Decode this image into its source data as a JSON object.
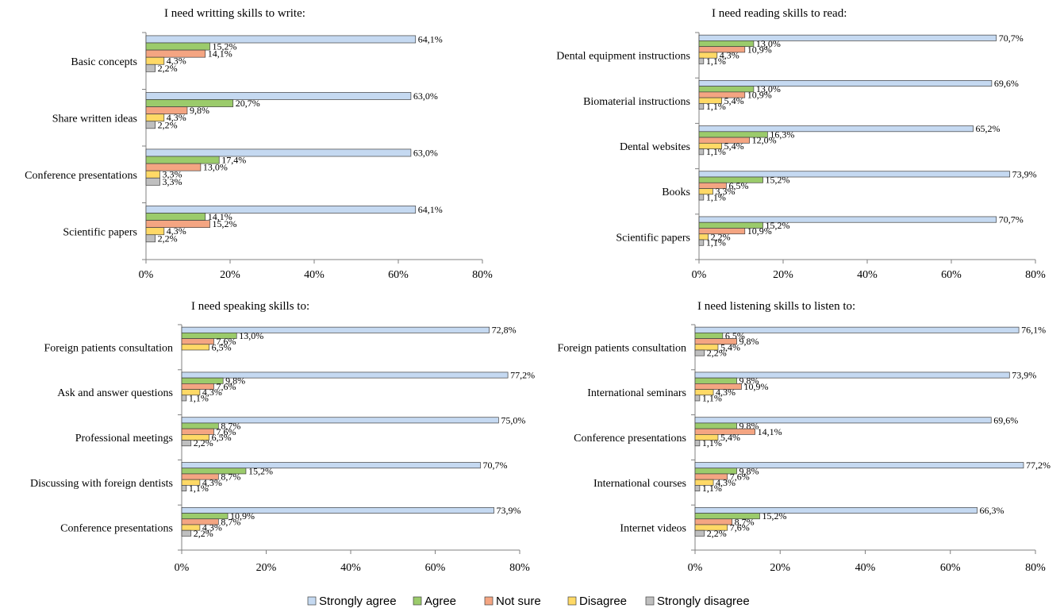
{
  "legend": [
    {
      "name": "Strongly agree",
      "color": "#C5D9F1"
    },
    {
      "name": "Agree",
      "color": "#9BCB6B"
    },
    {
      "name": "Not sure",
      "color": "#F4A582"
    },
    {
      "name": "Disagree",
      "color": "#FFD966"
    },
    {
      "name": "Strongly disagree",
      "color": "#BFBFBF"
    }
  ],
  "chart_data": [
    {
      "type": "bar",
      "orientation": "horizontal",
      "title": "I need writting skills to write:",
      "categories": [
        "Basic concepts",
        "Share written ideas",
        "Conference presentations",
        "Scientific papers"
      ],
      "series": [
        {
          "name": "Strongly agree",
          "values": [
            64.1,
            63.0,
            63.0,
            64.1
          ],
          "labels": [
            "64,1%",
            "63,0%",
            "63,0%",
            "64,1%"
          ]
        },
        {
          "name": "Agree",
          "values": [
            15.2,
            20.7,
            17.4,
            14.1
          ],
          "labels": [
            "15,2%",
            "20,7%",
            "17,4%",
            "14,1%"
          ]
        },
        {
          "name": "Not sure",
          "values": [
            14.1,
            9.8,
            13.0,
            15.2
          ],
          "labels": [
            "14,1%",
            "9,8%",
            "13,0%",
            "15,2%"
          ]
        },
        {
          "name": "Disagree",
          "values": [
            4.3,
            4.3,
            3.3,
            4.3
          ],
          "labels": [
            "4,3%",
            "4,3%",
            "3,3%",
            "4,3%"
          ]
        },
        {
          "name": "Strongly disagree",
          "values": [
            2.2,
            2.2,
            3.3,
            2.2
          ],
          "labels": [
            "2,2%",
            "2,2%",
            "3,3%",
            "2,2%"
          ]
        }
      ],
      "xlim": [
        0,
        80
      ],
      "ticks": [
        "0%",
        "20%",
        "40%",
        "60%",
        "80%"
      ]
    },
    {
      "type": "bar",
      "orientation": "horizontal",
      "title": "I need reading skills to read:",
      "categories": [
        "Dental equipment instructions",
        "Biomaterial instructions",
        "Dental websites",
        "Books",
        "Scientific papers"
      ],
      "series": [
        {
          "name": "Strongly agree",
          "values": [
            70.7,
            69.6,
            65.2,
            73.9,
            70.7
          ],
          "labels": [
            "70,7%",
            "69,6%",
            "65,2%",
            "73,9%",
            "70,7%"
          ]
        },
        {
          "name": "Agree",
          "values": [
            13.0,
            13.0,
            16.3,
            15.2,
            15.2
          ],
          "labels": [
            "13,0%",
            "13,0%",
            "16,3%",
            "15,2%",
            "15,2%"
          ]
        },
        {
          "name": "Not sure",
          "values": [
            10.9,
            10.9,
            12.0,
            6.5,
            10.9
          ],
          "labels": [
            "10,9%",
            "10,9%",
            "12,0%",
            "6,5%",
            "10,9%"
          ]
        },
        {
          "name": "Disagree",
          "values": [
            4.3,
            5.4,
            5.4,
            3.3,
            2.2
          ],
          "labels": [
            "4,3%",
            "5,4%",
            "5,4%",
            "3,3%",
            "2,2%"
          ]
        },
        {
          "name": "Strongly disagree",
          "values": [
            1.1,
            1.1,
            1.1,
            1.1,
            1.1
          ],
          "labels": [
            "1,1%",
            "1,1%",
            "1,1%",
            "1,1%",
            "1,1%"
          ]
        }
      ],
      "xlim": [
        0,
        80
      ],
      "ticks": [
        "0%",
        "20%",
        "40%",
        "60%",
        "80%"
      ]
    },
    {
      "type": "bar",
      "orientation": "horizontal",
      "title": "I need speaking skills to:",
      "categories": [
        "Foreign patients consultation",
        "Ask and answer questions",
        "Professional meetings",
        "Discussing with foreign dentists",
        "Conference presentations"
      ],
      "series": [
        {
          "name": "Strongly agree",
          "values": [
            72.8,
            77.2,
            75.0,
            70.7,
            73.9
          ],
          "labels": [
            "72,8%",
            "77,2%",
            "75,0%",
            "70,7%",
            "73,9%"
          ]
        },
        {
          "name": "Agree",
          "values": [
            13.0,
            9.8,
            8.7,
            15.2,
            10.9
          ],
          "labels": [
            "13,0%",
            "9,8%",
            "8,7%",
            "15,2%",
            "10,9%"
          ]
        },
        {
          "name": "Not sure",
          "values": [
            7.6,
            7.6,
            7.6,
            8.7,
            8.7
          ],
          "labels": [
            "7,6%",
            "7,6%",
            "7,6%",
            "8,7%",
            "8,7%"
          ]
        },
        {
          "name": "Disagree",
          "values": [
            6.5,
            4.3,
            6.5,
            4.3,
            4.3
          ],
          "labels": [
            "6,5%",
            "4,3%",
            "6,5%",
            "4,3%",
            "4,3%"
          ]
        },
        {
          "name": "Strongly disagree",
          "values": [
            0,
            1.1,
            2.2,
            1.1,
            2.2
          ],
          "labels": [
            "",
            "1,1%",
            "2,2%",
            "1,1%",
            "2,2%"
          ]
        }
      ],
      "xlim": [
        0,
        80
      ],
      "ticks": [
        "0%",
        "20%",
        "40%",
        "60%",
        "80%"
      ]
    },
    {
      "type": "bar",
      "orientation": "horizontal",
      "title": "I need listening skills to listen to:",
      "categories": [
        "Foreign patients consultation",
        "International seminars",
        "Conference presentations",
        "International courses",
        "Internet videos"
      ],
      "series": [
        {
          "name": "Strongly agree",
          "values": [
            76.1,
            73.9,
            69.6,
            77.2,
            66.3
          ],
          "labels": [
            "76,1%",
            "73,9%",
            "69,6%",
            "77,2%",
            "66,3%"
          ]
        },
        {
          "name": "Agree",
          "values": [
            6.5,
            9.8,
            9.8,
            9.8,
            15.2
          ],
          "labels": [
            "6,5%",
            "9,8%",
            "9,8%",
            "9,8%",
            "15,2%"
          ]
        },
        {
          "name": "Not sure",
          "values": [
            9.8,
            10.9,
            14.1,
            7.6,
            8.7
          ],
          "labels": [
            "9,8%",
            "10,9%",
            "14,1%",
            "7,6%",
            "8,7%"
          ]
        },
        {
          "name": "Disagree",
          "values": [
            5.4,
            4.3,
            5.4,
            4.3,
            7.6
          ],
          "labels": [
            "5,4%",
            "4,3%",
            "5,4%",
            "4,3%",
            "7,6%"
          ]
        },
        {
          "name": "Strongly disagree",
          "values": [
            2.2,
            1.1,
            1.1,
            1.1,
            2.2
          ],
          "labels": [
            "2,2%",
            "1,1%",
            "1,1%",
            "1,1%",
            "2,2%"
          ]
        }
      ],
      "xlim": [
        0,
        80
      ],
      "ticks": [
        "0%",
        "20%",
        "40%",
        "60%",
        "80%"
      ]
    }
  ]
}
